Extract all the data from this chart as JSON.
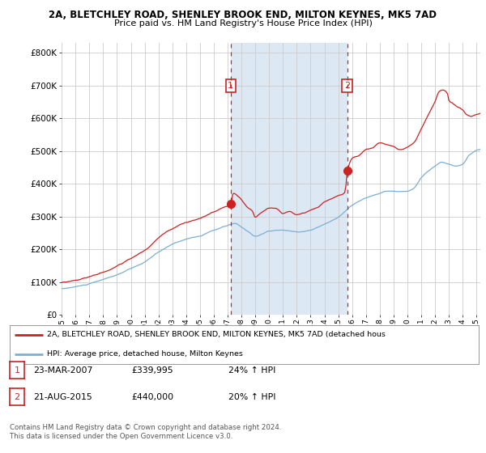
{
  "title1": "2A, BLETCHLEY ROAD, SHENLEY BROOK END, MILTON KEYNES, MK5 7AD",
  "title2": "Price paid vs. HM Land Registry's House Price Index (HPI)",
  "background_color": "#ffffff",
  "plot_bg_color": "#ffffff",
  "shade_color": "#dce9f5",
  "grid_color": "#cccccc",
  "red_color": "#cc2222",
  "blue_color": "#7bafd4",
  "red_line_label": "2A, BLETCHLEY ROAD, SHENLEY BROOK END, MILTON KEYNES, MK5 7AD (detached hous",
  "blue_line_label": "HPI: Average price, detached house, Milton Keynes",
  "annotation1_date": "23-MAR-2007",
  "annotation1_price": "£339,995",
  "annotation1_hpi": "24% ↑ HPI",
  "annotation2_date": "21-AUG-2015",
  "annotation2_price": "£440,000",
  "annotation2_hpi": "20% ↑ HPI",
  "footer": "Contains HM Land Registry data © Crown copyright and database right 2024.\nThis data is licensed under the Open Government Licence v3.0.",
  "vline1_x": 2007.22,
  "vline2_x": 2015.64,
  "marker1_y": 339995,
  "marker2_y": 440000,
  "ylim": [
    0,
    830000
  ],
  "xlim": [
    1995.0,
    2025.3
  ]
}
